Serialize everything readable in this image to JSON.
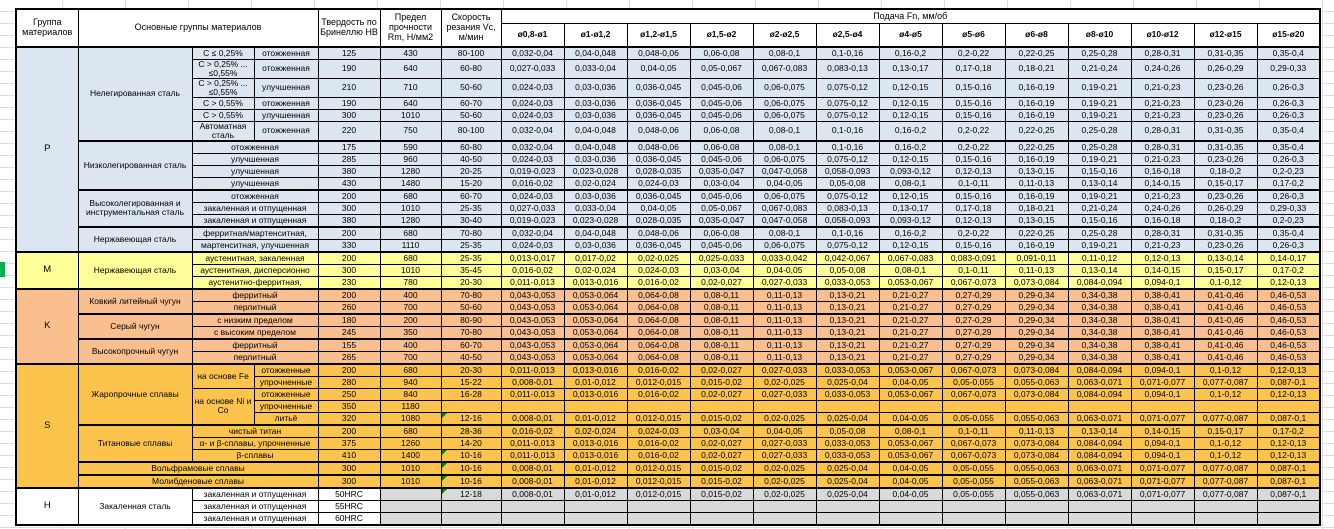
{
  "table": {
    "headers": {
      "group": "Группа материалов",
      "main_groups": "Основные группы материалов",
      "hardness": "Твердость по Бринеллю HB",
      "strength": "Предел прочности Rm, Н/мм2",
      "speed": "Скорость резания Vc, м/мин",
      "feed": "Подача Fn, мм/об",
      "diameters": [
        "ø0,8-ø1",
        "ø1-ø1,2",
        "ø1,2-ø1,5",
        "ø1,5-ø2",
        "ø2-ø2,5",
        "ø2,5-ø4",
        "ø4-ø5",
        "ø5-ø6",
        "ø6-ø8",
        "ø8-ø10",
        "ø10-ø12",
        "ø12-ø15",
        "ø15-ø20"
      ]
    },
    "note_color": "#008000",
    "marker_color": "#00b050",
    "feed_patterns": {
      "A": [
        "0,032-0,04",
        "0,04-0,048",
        "0,048-0,06",
        "0,06-0,08",
        "0,08-0,1",
        "0,1-0,16",
        "0,16-0,2",
        "0,2-0,22",
        "0,22-0,25",
        "0,25-0,28",
        "0,28-0,31",
        "0,31-0,35",
        "0,35-0,4"
      ],
      "B": [
        "0,027-0,033",
        "0,033-0,04",
        "0,04-0,05",
        "0,05-0,067",
        "0,067-0,083",
        "0,083-0,13",
        "0,13-0,17",
        "0,17-0,18",
        "0,18-0,21",
        "0,21-0,24",
        "0,24-0,26",
        "0,26-0,29",
        "0,29-0,33"
      ],
      "C": [
        "0,024-0,03",
        "0,03-0,036",
        "0,036-0,045",
        "0,045-0,06",
        "0,06-0,075",
        "0,075-0,12",
        "0,12-0,15",
        "0,15-0,16",
        "0,16-0,19",
        "0,19-0,21",
        "0,21-0,23",
        "0,23-0,26",
        "0,26-0,3"
      ],
      "D": [
        "0,019-0,023",
        "0,023-0,028",
        "0,028-0,035",
        "0,035-0,047",
        "0,047-0,058",
        "0,058-0,093",
        "0,093-0,12",
        "0,12-0,13",
        "0,13-0,15",
        "0,15-0,16",
        "0,16-0,18",
        "0,18-0,2",
        "0,2-0,23"
      ],
      "E": [
        "0,016-0,02",
        "0,02-0,024",
        "0,024-0,03",
        "0,03-0,04",
        "0,04-0,05",
        "0,05-0,08",
        "0,08-0,1",
        "0,1-0,11",
        "0,11-0,13",
        "0,13-0,14",
        "0,14-0,15",
        "0,15-0,17",
        "0,17-0,2"
      ],
      "F": [
        "0,011-0,013",
        "0,013-0,016",
        "0,016-0,02",
        "0,02-0,027",
        "0,027-0,033",
        "0,033-0,053",
        "0,053-0,067",
        "0,067-0,073",
        "0,073-0,084",
        "0,084-0,094",
        "0,094-0,1",
        "0,1-0,12",
        "0,12-0,13"
      ],
      "G": [
        "0,008-0,01",
        "0,01-0,012",
        "0,012-0,015",
        "0,015-0,02",
        "0,02-0,025",
        "0,025-0,04",
        "0,04-0,05",
        "0,05-0,055",
        "0,055-0,063",
        "0,063-0,071",
        "0,071-0,077",
        "0,077-0,087",
        "0,087-0,1"
      ],
      "H": [
        "0,013-0,017",
        "0,017-0,02",
        "0,02-0,025",
        "0,025-0,033",
        "0,033-0,042",
        "0,042-0,067",
        "0,067-0,083",
        "0,083-0,091",
        "0,091-0,11",
        "0,11-0,12",
        "0,12-0,13",
        "0,13-0,14",
        "0,14-0,17"
      ],
      "K": [
        "0,043-0,053",
        "0,053-0,064",
        "0,064-0,08",
        "0,08-0,11",
        "0,11-0,13",
        "0,13-0,21",
        "0,21-0,27",
        "0,27-0,29",
        "0,29-0,34",
        "0,34-0,38",
        "0,38-0,41",
        "0,41-0,46",
        "0,46-0,53"
      ],
      "X": [
        "",
        "",
        "",
        "",
        "",
        "",
        "",
        "",
        "",
        "",
        "",
        "",
        ""
      ]
    },
    "groups": [
      {
        "code": "P",
        "color": "#dce6f1",
        "rows": [
          {
            "labels": [
              [
                "Нелегированная сталь",
                6,
                1
              ],
              [
                "C ≤ 0,25%",
                1,
                1
              ],
              [
                "отожженная",
                1,
                1
              ]
            ],
            "hb": "125",
            "rm": "430",
            "vc": "80-100",
            "fp": "A"
          },
          {
            "labels": [
              [
                "C > 0,25% ... ≤0,55%",
                1,
                1
              ],
              [
                "отожженная",
                1,
                1
              ]
            ],
            "hb": "190",
            "rm": "640",
            "vc": "60-80",
            "fp": "B"
          },
          {
            "labels": [
              [
                "C > 0,25% ... ≤0,55%",
                1,
                1
              ],
              [
                "улучшенная",
                1,
                1
              ]
            ],
            "hb": "210",
            "rm": "710",
            "vc": "50-60",
            "fp": "C"
          },
          {
            "labels": [
              [
                "C > 0,55%",
                1,
                1
              ],
              [
                "отожженная",
                1,
                1
              ]
            ],
            "hb": "190",
            "rm": "640",
            "vc": "60-70",
            "fp": "C"
          },
          {
            "labels": [
              [
                "C > 0,55%",
                1,
                1
              ],
              [
                "улучшенная",
                1,
                1
              ]
            ],
            "hb": "300",
            "rm": "1010",
            "vc": "50-60",
            "fp": "C"
          },
          {
            "labels": [
              [
                "Автоматная сталь",
                1,
                1
              ],
              [
                "отожженная",
                1,
                1
              ]
            ],
            "hb": "220",
            "rm": "750",
            "vc": "80-100",
            "fp": "A"
          },
          {
            "labels": [
              [
                "Низколегированная сталь",
                4,
                1
              ],
              [
                "отожженная",
                1,
                2
              ]
            ],
            "hb": "175",
            "rm": "590",
            "vc": "60-80",
            "fp": "A",
            "block": true
          },
          {
            "labels": [
              [
                "улучшенная",
                1,
                2
              ]
            ],
            "hb": "285",
            "rm": "960",
            "vc": "40-50",
            "fp": "C"
          },
          {
            "labels": [
              [
                "улучшенная",
                1,
                2
              ]
            ],
            "hb": "380",
            "rm": "1280",
            "vc": "20-25",
            "fp": "D"
          },
          {
            "labels": [
              [
                "улучшенная",
                1,
                2
              ]
            ],
            "hb": "430",
            "rm": "1480",
            "vc": "15-20",
            "fp": "E"
          },
          {
            "labels": [
              [
                "Высоколегированная и инструментальная сталь",
                3,
                1
              ],
              [
                "отожженная",
                1,
                2
              ]
            ],
            "hb": "200",
            "rm": "680",
            "vc": "60-70",
            "fp": "C",
            "block": true
          },
          {
            "labels": [
              [
                "закаленная и отпущенная",
                1,
                2
              ]
            ],
            "hb": "300",
            "rm": "1010",
            "vc": "25-35",
            "fp": "B"
          },
          {
            "labels": [
              [
                "закаленная и отпущенная",
                1,
                2
              ]
            ],
            "hb": "380",
            "rm": "1280",
            "vc": "30-40",
            "fp": "D"
          },
          {
            "labels": [
              [
                "Нержавеющая сталь",
                2,
                1
              ],
              [
                "ферритная/мартенситная,",
                1,
                2
              ]
            ],
            "hb": "200",
            "rm": "680",
            "vc": "70-80",
            "fp": "A",
            "block": true
          },
          {
            "labels": [
              [
                "мартенситная, улучшенная",
                1,
                2
              ]
            ],
            "hb": "330",
            "rm": "1110",
            "vc": "25-35",
            "fp": "C"
          }
        ]
      },
      {
        "code": "M",
        "color": "#ffff99",
        "rows": [
          {
            "labels": [
              [
                "Нержавеющая сталь",
                3,
                1
              ],
              [
                "аустенитная, закаленная",
                1,
                2
              ]
            ],
            "hb": "200",
            "rm": "680",
            "vc": "25-35",
            "fp": "H"
          },
          {
            "labels": [
              [
                "аустенитная, дисперсионно",
                1,
                2
              ]
            ],
            "hb": "300",
            "rm": "1010",
            "vc": "35-45",
            "fp": "E"
          },
          {
            "labels": [
              [
                "аустенитно-ферритная,",
                1,
                2
              ]
            ],
            "hb": "230",
            "rm": "780",
            "vc": "20-30",
            "fp": "F"
          }
        ]
      },
      {
        "code": "K",
        "color": "#fabf8f",
        "rows": [
          {
            "labels": [
              [
                "Ковкий литейный чугун",
                2,
                1
              ],
              [
                "ферритный",
                1,
                2
              ]
            ],
            "hb": "200",
            "rm": "400",
            "vc": "70-80",
            "fp": "K"
          },
          {
            "labels": [
              [
                "перлитный",
                1,
                2
              ]
            ],
            "hb": "260",
            "rm": "700",
            "vc": "50-60",
            "fp": "K"
          },
          {
            "labels": [
              [
                "Серый чугун",
                2,
                1
              ],
              [
                "с низким пределом",
                1,
                2
              ]
            ],
            "hb": "180",
            "rm": "200",
            "vc": "80-90",
            "fp": "K",
            "block": true
          },
          {
            "labels": [
              [
                "с высоким пределом",
                1,
                2
              ]
            ],
            "hb": "245",
            "rm": "350",
            "vc": "70-80",
            "fp": "K"
          },
          {
            "labels": [
              [
                "Высокопрочный чугун",
                2,
                1
              ],
              [
                "ферритный",
                1,
                2
              ]
            ],
            "hb": "155",
            "rm": "400",
            "vc": "60-70",
            "fp": "K",
            "block": true
          },
          {
            "labels": [
              [
                "перлитный",
                1,
                2
              ]
            ],
            "hb": "265",
            "rm": "700",
            "vc": "40-50",
            "fp": "K"
          }
        ]
      },
      {
        "code": "S",
        "color": "#fcc44d",
        "rows": [
          {
            "labels": [
              [
                "Жаропрочные сплавы",
                5,
                1
              ],
              [
                "на основе Fe",
                2,
                1
              ],
              [
                "отожженные",
                1,
                1
              ]
            ],
            "hb": "200",
            "rm": "680",
            "vc": "20-30",
            "fp": "F"
          },
          {
            "labels": [
              [
                "упрочненные",
                1,
                1
              ]
            ],
            "hb": "280",
            "rm": "940",
            "vc": "15-22",
            "fp": "G"
          },
          {
            "labels": [
              [
                "на основе Ni и Co",
                3,
                1
              ],
              [
                "отожженные",
                1,
                1
              ]
            ],
            "hb": "250",
            "rm": "840",
            "vc": "16-28",
            "fp": "F"
          },
          {
            "labels": [
              [
                "упрочненные",
                1,
                1
              ]
            ],
            "hb": "350",
            "rm": "1180",
            "vc": "",
            "fp": "X"
          },
          {
            "labels": [
              [
                "литьё",
                1,
                1
              ]
            ],
            "hb": "320",
            "rm": "1080",
            "vc": "12-16",
            "fp": "G",
            "note": true
          },
          {
            "labels": [
              [
                "Титановые сплавы",
                3,
                1
              ],
              [
                "чистый титан",
                1,
                2
              ]
            ],
            "hb": "200",
            "rm": "680",
            "vc": "28-36",
            "fp": "E",
            "block": true
          },
          {
            "labels": [
              [
                "α- и β-сплавы, упрочненные",
                1,
                2
              ]
            ],
            "hb": "375",
            "rm": "1260",
            "vc": "14-20",
            "fp": "F"
          },
          {
            "labels": [
              [
                "β-сплавы",
                1,
                2
              ]
            ],
            "hb": "410",
            "rm": "1400",
            "vc": "10-16",
            "fp": "F",
            "note": true
          },
          {
            "labels": [
              [
                "Вольфрамовые сплавы",
                1,
                3
              ]
            ],
            "hb": "300",
            "rm": "1010",
            "vc": "10-16",
            "fp": "G",
            "note": true,
            "block": true
          },
          {
            "labels": [
              [
                "Молибденовые сплавы",
                1,
                3
              ]
            ],
            "hb": "300",
            "rm": "1010",
            "vc": "10-16",
            "fp": "G",
            "note": true,
            "block": true
          }
        ]
      },
      {
        "code": "H",
        "color": "#d9d9d9",
        "label_color": "#ffffff",
        "rows": [
          {
            "labels": [
              [
                "Закаленная сталь",
                3,
                1
              ],
              [
                "закаленная и отпущенная",
                1,
                2
              ]
            ],
            "hb": "50HRC",
            "rm": "",
            "vc": "12-18",
            "fp": "G",
            "note": true
          },
          {
            "labels": [
              [
                "закаленная и отпущенная",
                1,
                2
              ]
            ],
            "hb": "55HRC",
            "rm": "",
            "vc": "",
            "fp": "X"
          },
          {
            "labels": [
              [
                "закаленная и отпущенная",
                1,
                2
              ]
            ],
            "hb": "60HRC",
            "rm": "",
            "vc": "",
            "fp": "X"
          }
        ]
      }
    ]
  }
}
